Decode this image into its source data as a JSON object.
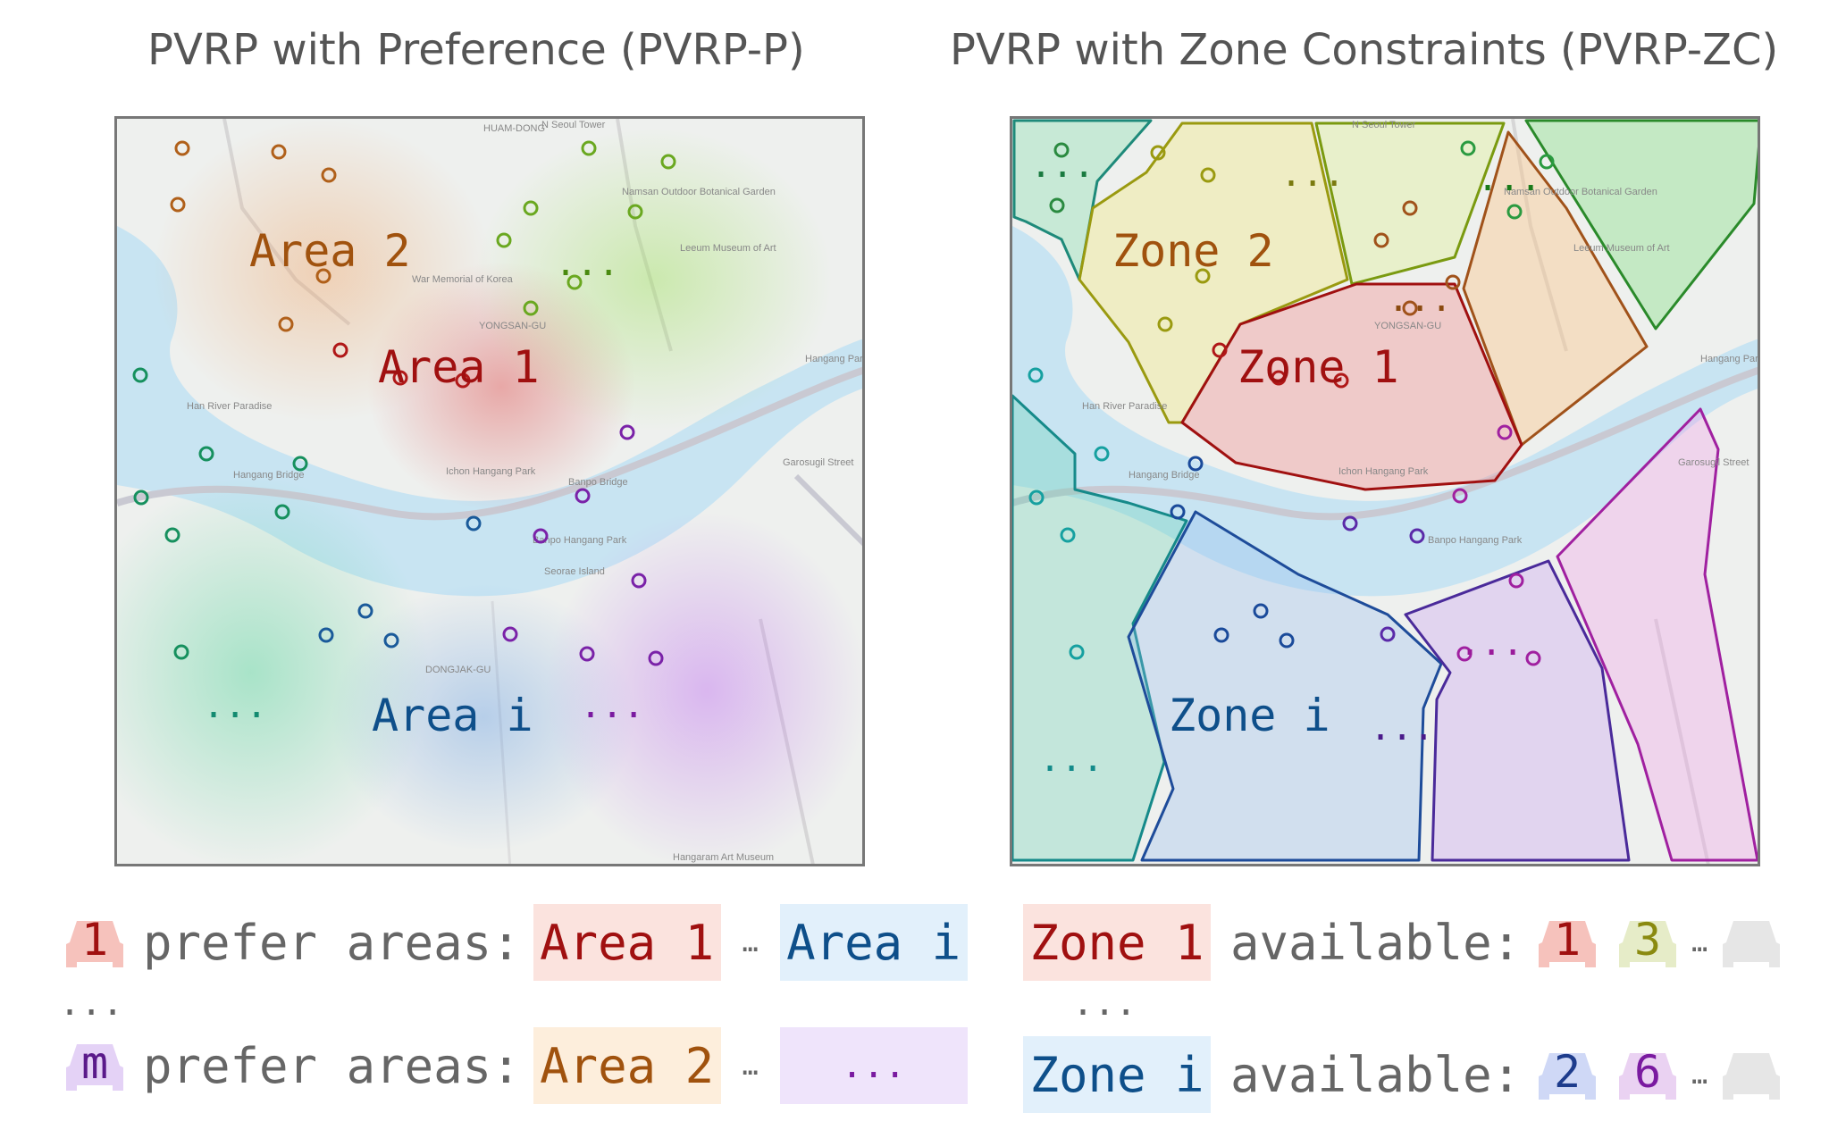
{
  "left_panel": {
    "title": "PVRP with Preference (PVRP-P)",
    "labels": {
      "area2": "Area 2",
      "area1": "Area 1",
      "areai": "Area i",
      "dots_green": "...",
      "dots_teal": "...",
      "dots_purple": "..."
    }
  },
  "right_panel": {
    "title": "PVRP with Zone Constraints (PVRP-ZC)",
    "labels": {
      "zone2": "Zone 2",
      "zone1": "Zone 1",
      "zonei": "Zone i",
      "dots_a": "...",
      "dots_b": "...",
      "dots_c": "...",
      "dots_d": "...",
      "dots_e": "...",
      "dots_f": "...",
      "dots_g": "..."
    }
  },
  "map_labels": [
    "N Seoul Tower",
    "Namsan Outdoor Botanical Garden",
    "Leeum Museum of Art",
    "War Memorial of Korea",
    "YONGSAN-GU",
    "Hangang Park",
    "Han River Paradise",
    "Ichon Hangang Park",
    "Banpo Bridge",
    "Hangang Bridge",
    "Banpo Hangang Park",
    "Seorae Island",
    "DONGJAK-GU",
    "Hangaram Art Museum",
    "Garosugil Street",
    "HUAM-DONG"
  ],
  "legend_left": {
    "row1": {
      "car": "1",
      "text": "prefer areas:",
      "chip1": "Area 1",
      "sep": "…",
      "chip2": "Area i"
    },
    "ellipsis": "...",
    "row2": {
      "car": "m",
      "text": "prefer areas:",
      "chip1": "Area 2",
      "sep": "…",
      "chip2": "..."
    }
  },
  "legend_right": {
    "row1": {
      "zone": "Zone 1",
      "text": "available:",
      "car1": "1",
      "car2": "3",
      "sep": "…"
    },
    "ellipsis": "...",
    "row2": {
      "zone": "Zone i",
      "text": "available:",
      "car1": "2",
      "car2": "6",
      "sep": "…"
    }
  },
  "colors": {
    "area1": "#a01010",
    "area2": "#a0520e",
    "areai": "#0e4f8a",
    "green": "#5aa020",
    "teal": "#138a70",
    "purple": "#7a1aa0",
    "olive": "#9a9a10",
    "zone_blue": "#1e3c8c"
  }
}
